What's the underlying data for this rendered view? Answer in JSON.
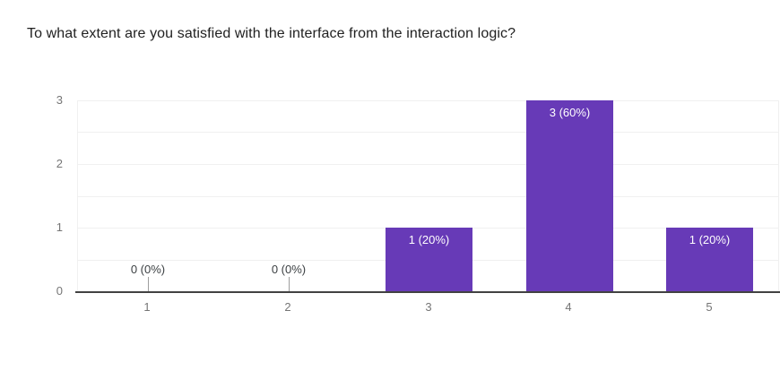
{
  "title": "To what extent are you satisfied with the interface from the interaction logic?",
  "colors": {
    "background": "#ffffff",
    "bar": "#673ab7",
    "bar_label": "#ffffff",
    "axis_line": "#424242",
    "gridline": "#f0f0f0",
    "tick_label": "#757575",
    "zero_label": "#3c4043",
    "zero_tick": "#9e9e9e",
    "title": "#212121"
  },
  "chart_data": {
    "type": "bar",
    "title": "To what extent are you satisfied with the interface from the interaction logic?",
    "categories": [
      "1",
      "2",
      "3",
      "4",
      "5"
    ],
    "values": [
      0,
      0,
      1,
      3,
      1
    ],
    "data_labels": [
      "0 (0%)",
      "0 (0%)",
      "1 (20%)",
      "3 (60%)",
      "1 (20%)"
    ],
    "xlabel": "",
    "ylabel": "",
    "ylim": [
      0,
      3
    ],
    "yticks": [
      0,
      1,
      2,
      3
    ],
    "gridline_step": 0.5,
    "grid": "on",
    "legend": "none",
    "bar_color": "#673ab7"
  }
}
